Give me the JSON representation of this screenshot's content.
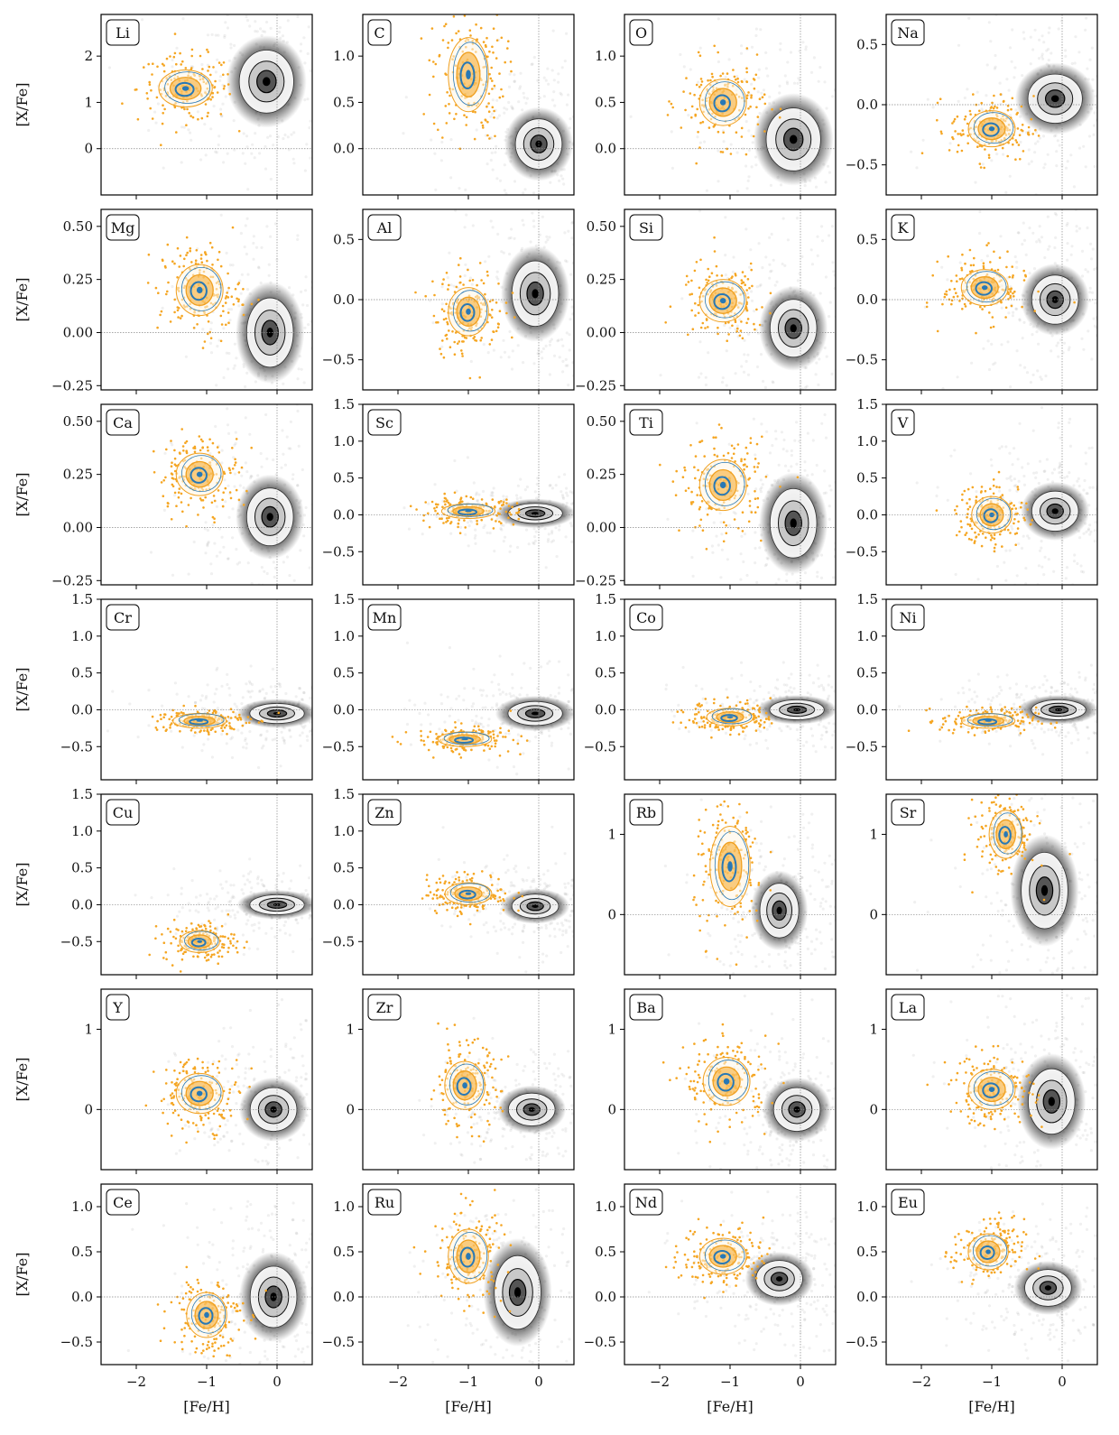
{
  "figure": {
    "xlabel": "[Fe/H]",
    "ylabel": "[X/Fe]",
    "colors": {
      "accreted_points": "#f5a623",
      "accreted_contour_orange": "#f0a020",
      "accreted_contour_blue": "#2878b5",
      "insitu_density": "#000000",
      "reference_lines": "#888888"
    }
  },
  "chart_data": [
    {
      "type": "scatter",
      "title": "Li",
      "xlim": [
        -2.5,
        0.5
      ],
      "ylim": [
        -1.0,
        2.9
      ],
      "yticks": [
        0,
        1,
        2
      ],
      "yticklabels": [
        "0",
        "1",
        "2"
      ],
      "accreted_center": [
        -1.3,
        1.3
      ],
      "disk_center": [
        -0.15,
        1.45
      ],
      "disk_spread": [
        0.35,
        0.5
      ],
      "accreted_spread": [
        0.4,
        0.4
      ]
    },
    {
      "type": "scatter",
      "title": "C",
      "xlim": [
        -2.5,
        0.5
      ],
      "ylim": [
        -0.5,
        1.45
      ],
      "yticks": [
        0,
        0.5,
        1.0
      ],
      "yticklabels": [
        "0.0",
        "0.5",
        "1.0"
      ],
      "accreted_center": [
        -1.0,
        0.8
      ],
      "disk_center": [
        0.0,
        0.05
      ],
      "disk_spread": [
        0.3,
        0.2
      ],
      "accreted_spread": [
        0.3,
        0.4
      ]
    },
    {
      "type": "scatter",
      "title": "O",
      "xlim": [
        -2.5,
        0.5
      ],
      "ylim": [
        -0.5,
        1.45
      ],
      "yticks": [
        0,
        0.5,
        1.0
      ],
      "yticklabels": [
        "0.0",
        "0.5",
        "1.0"
      ],
      "accreted_center": [
        -1.1,
        0.5
      ],
      "disk_center": [
        -0.1,
        0.1
      ],
      "disk_spread": [
        0.35,
        0.25
      ],
      "accreted_spread": [
        0.35,
        0.25
      ]
    },
    {
      "type": "scatter",
      "title": "Na",
      "xlim": [
        -2.5,
        0.5
      ],
      "ylim": [
        -0.75,
        0.75
      ],
      "yticks": [
        -0.5,
        0,
        0.5
      ],
      "yticklabels": [
        "−0.5",
        "0.0",
        "0.5"
      ],
      "accreted_center": [
        -1.0,
        -0.2
      ],
      "disk_center": [
        -0.1,
        0.05
      ],
      "disk_spread": [
        0.35,
        0.15
      ],
      "accreted_spread": [
        0.35,
        0.15
      ]
    },
    {
      "type": "scatter",
      "title": "Mg",
      "xlim": [
        -2.5,
        0.5
      ],
      "ylim": [
        -0.27,
        0.58
      ],
      "yticks": [
        -0.25,
        0,
        0.25,
        0.5
      ],
      "yticklabels": [
        "−0.25",
        "0.00",
        "0.25",
        "0.50"
      ],
      "accreted_center": [
        -1.1,
        0.2
      ],
      "disk_center": [
        -0.1,
        0.0
      ],
      "disk_spread": [
        0.3,
        0.12
      ],
      "accreted_spread": [
        0.35,
        0.12
      ]
    },
    {
      "type": "scatter",
      "title": "Al",
      "xlim": [
        -2.5,
        0.5
      ],
      "ylim": [
        -0.75,
        0.75
      ],
      "yticks": [
        -0.5,
        0,
        0.5
      ],
      "yticklabels": [
        "−0.5",
        "0.0",
        "0.5"
      ],
      "accreted_center": [
        -1.0,
        -0.1
      ],
      "disk_center": [
        -0.05,
        0.05
      ],
      "disk_spread": [
        0.3,
        0.2
      ],
      "accreted_spread": [
        0.3,
        0.2
      ]
    },
    {
      "type": "scatter",
      "title": "Si",
      "xlim": [
        -2.5,
        0.5
      ],
      "ylim": [
        -0.27,
        0.58
      ],
      "yticks": [
        -0.25,
        0,
        0.25,
        0.5
      ],
      "yticklabels": [
        "−0.25",
        "0.00",
        "0.25",
        "0.50"
      ],
      "accreted_center": [
        -1.1,
        0.15
      ],
      "disk_center": [
        -0.1,
        0.02
      ],
      "disk_spread": [
        0.3,
        0.1
      ],
      "accreted_spread": [
        0.35,
        0.1
      ]
    },
    {
      "type": "scatter",
      "title": "K",
      "xlim": [
        -2.5,
        0.5
      ],
      "ylim": [
        -0.75,
        0.75
      ],
      "yticks": [
        -0.5,
        0,
        0.5
      ],
      "yticklabels": [
        "−0.5",
        "0.0",
        "0.5"
      ],
      "accreted_center": [
        -1.1,
        0.1
      ],
      "disk_center": [
        -0.1,
        0.0
      ],
      "disk_spread": [
        0.3,
        0.15
      ],
      "accreted_spread": [
        0.35,
        0.15
      ]
    },
    {
      "type": "scatter",
      "title": "Ca",
      "xlim": [
        -2.5,
        0.5
      ],
      "ylim": [
        -0.27,
        0.58
      ],
      "yticks": [
        -0.25,
        0,
        0.25,
        0.5
      ],
      "yticklabels": [
        "−0.25",
        "0.00",
        "0.25",
        "0.50"
      ],
      "accreted_center": [
        -1.1,
        0.25
      ],
      "disk_center": [
        -0.1,
        0.05
      ],
      "disk_spread": [
        0.3,
        0.1
      ],
      "accreted_spread": [
        0.35,
        0.1
      ]
    },
    {
      "type": "scatter",
      "title": "Sc",
      "xlim": [
        -2.5,
        0.5
      ],
      "ylim": [
        -0.95,
        1.5
      ],
      "yticks": [
        -0.5,
        0,
        0.5,
        1.0,
        1.5
      ],
      "yticklabels": [
        "−0.5",
        "0.0",
        "0.5",
        "1.0",
        "1.5"
      ],
      "accreted_center": [
        -1.0,
        0.05
      ],
      "disk_center": [
        -0.05,
        0.02
      ],
      "disk_spread": [
        0.35,
        0.1
      ],
      "accreted_spread": [
        0.4,
        0.1
      ]
    },
    {
      "type": "scatter",
      "title": "Ti",
      "xlim": [
        -2.5,
        0.5
      ],
      "ylim": [
        -0.27,
        0.58
      ],
      "yticks": [
        -0.25,
        0,
        0.25,
        0.5
      ],
      "yticklabels": [
        "−0.25",
        "0.00",
        "0.25",
        "0.50"
      ],
      "accreted_center": [
        -1.1,
        0.2
      ],
      "disk_center": [
        -0.1,
        0.02
      ],
      "disk_spread": [
        0.3,
        0.12
      ],
      "accreted_spread": [
        0.35,
        0.12
      ]
    },
    {
      "type": "scatter",
      "title": "V",
      "xlim": [
        -2.5,
        0.5
      ],
      "ylim": [
        -0.95,
        1.5
      ],
      "yticks": [
        -0.5,
        0,
        0.5,
        1.0,
        1.5
      ],
      "yticklabels": [
        "−0.5",
        "0.0",
        "0.5",
        "1.0",
        "1.5"
      ],
      "accreted_center": [
        -1.0,
        0.0
      ],
      "disk_center": [
        -0.1,
        0.05
      ],
      "disk_spread": [
        0.3,
        0.2
      ],
      "accreted_spread": [
        0.3,
        0.25
      ]
    },
    {
      "type": "scatter",
      "title": "Cr",
      "xlim": [
        -2.5,
        0.5
      ],
      "ylim": [
        -0.95,
        1.5
      ],
      "yticks": [
        -0.5,
        0,
        0.5,
        1.0,
        1.5
      ],
      "yticklabels": [
        "−0.5",
        "0.0",
        "0.5",
        "1.0",
        "1.5"
      ],
      "accreted_center": [
        -1.1,
        -0.15
      ],
      "disk_center": [
        0.0,
        -0.05
      ],
      "disk_spread": [
        0.35,
        0.1
      ],
      "accreted_spread": [
        0.4,
        0.1
      ]
    },
    {
      "type": "scatter",
      "title": "Mn",
      "xlim": [
        -2.5,
        0.5
      ],
      "ylim": [
        -0.95,
        1.5
      ],
      "yticks": [
        -0.5,
        0,
        0.5,
        1.0,
        1.5
      ],
      "yticklabels": [
        "−0.5",
        "0.0",
        "0.5",
        "1.0",
        "1.5"
      ],
      "accreted_center": [
        -1.05,
        -0.4
      ],
      "disk_center": [
        -0.05,
        -0.05
      ],
      "disk_spread": [
        0.35,
        0.12
      ],
      "accreted_spread": [
        0.4,
        0.1
      ]
    },
    {
      "type": "scatter",
      "title": "Co",
      "xlim": [
        -2.5,
        0.5
      ],
      "ylim": [
        -0.95,
        1.5
      ],
      "yticks": [
        -0.5,
        0,
        0.5,
        1.0,
        1.5
      ],
      "yticklabels": [
        "−0.5",
        "0.0",
        "0.5",
        "1.0",
        "1.5"
      ],
      "accreted_center": [
        -1.0,
        -0.1
      ],
      "disk_center": [
        -0.05,
        0.0
      ],
      "disk_spread": [
        0.35,
        0.1
      ],
      "accreted_spread": [
        0.35,
        0.12
      ]
    },
    {
      "type": "scatter",
      "title": "Ni",
      "xlim": [
        -2.5,
        0.5
      ],
      "ylim": [
        -0.95,
        1.5
      ],
      "yticks": [
        -0.5,
        0,
        0.5,
        1.0,
        1.5
      ],
      "yticklabels": [
        "−0.5",
        "0.0",
        "0.5",
        "1.0",
        "1.5"
      ],
      "accreted_center": [
        -1.05,
        -0.15
      ],
      "disk_center": [
        -0.05,
        0.0
      ],
      "disk_spread": [
        0.35,
        0.1
      ],
      "accreted_spread": [
        0.4,
        0.1
      ]
    },
    {
      "type": "scatter",
      "title": "Cu",
      "xlim": [
        -2.5,
        0.5
      ],
      "ylim": [
        -0.95,
        1.5
      ],
      "yticks": [
        -0.5,
        0,
        0.5,
        1.0,
        1.5
      ],
      "yticklabels": [
        "−0.5",
        "0.0",
        "0.5",
        "1.0",
        "1.5"
      ],
      "accreted_center": [
        -1.1,
        -0.5
      ],
      "disk_center": [
        0.0,
        0.0
      ],
      "disk_spread": [
        0.35,
        0.1
      ],
      "accreted_spread": [
        0.3,
        0.15
      ]
    },
    {
      "type": "scatter",
      "title": "Zn",
      "xlim": [
        -2.5,
        0.5
      ],
      "ylim": [
        -0.95,
        1.5
      ],
      "yticks": [
        -0.5,
        0,
        0.5,
        1.0,
        1.5
      ],
      "yticklabels": [
        "−0.5",
        "0.0",
        "0.5",
        "1.0",
        "1.5"
      ],
      "accreted_center": [
        -1.0,
        0.15
      ],
      "disk_center": [
        -0.05,
        -0.02
      ],
      "disk_spread": [
        0.3,
        0.12
      ],
      "accreted_spread": [
        0.35,
        0.15
      ]
    },
    {
      "type": "scatter",
      "title": "Rb",
      "xlim": [
        -2.5,
        0.5
      ],
      "ylim": [
        -0.75,
        1.5
      ],
      "yticks": [
        0,
        1
      ],
      "yticklabels": [
        "0",
        "1"
      ],
      "accreted_center": [
        -1.0,
        0.6
      ],
      "disk_center": [
        -0.3,
        0.05
      ],
      "disk_spread": [
        0.25,
        0.25
      ],
      "accreted_spread": [
        0.3,
        0.5
      ]
    },
    {
      "type": "scatter",
      "title": "Sr",
      "xlim": [
        -2.5,
        0.5
      ],
      "ylim": [
        -0.75,
        1.5
      ],
      "yticks": [
        0,
        1
      ],
      "yticklabels": [
        "0",
        "1"
      ],
      "accreted_center": [
        -0.8,
        1.0
      ],
      "disk_center": [
        -0.25,
        0.3
      ],
      "disk_spread": [
        0.3,
        0.35
      ],
      "accreted_spread": [
        0.25,
        0.3
      ]
    },
    {
      "type": "scatter",
      "title": "Y",
      "xlim": [
        -2.5,
        0.5
      ],
      "ylim": [
        -0.75,
        1.5
      ],
      "yticks": [
        0,
        1
      ],
      "yticklabels": [
        "0",
        "1"
      ],
      "accreted_center": [
        -1.1,
        0.2
      ],
      "disk_center": [
        -0.05,
        0.0
      ],
      "disk_spread": [
        0.3,
        0.2
      ],
      "accreted_spread": [
        0.35,
        0.25
      ]
    },
    {
      "type": "scatter",
      "title": "Zr",
      "xlim": [
        -2.5,
        0.5
      ],
      "ylim": [
        -0.75,
        1.5
      ],
      "yticks": [
        0,
        1
      ],
      "yticklabels": [
        "0",
        "1"
      ],
      "accreted_center": [
        -1.05,
        0.3
      ],
      "disk_center": [
        -0.1,
        0.0
      ],
      "disk_spread": [
        0.3,
        0.15
      ],
      "accreted_spread": [
        0.3,
        0.3
      ]
    },
    {
      "type": "scatter",
      "title": "Ba",
      "xlim": [
        -2.5,
        0.5
      ],
      "ylim": [
        -0.75,
        1.5
      ],
      "yticks": [
        0,
        1
      ],
      "yticklabels": [
        "0",
        "1"
      ],
      "accreted_center": [
        -1.05,
        0.35
      ],
      "disk_center": [
        -0.05,
        0.0
      ],
      "disk_spread": [
        0.3,
        0.2
      ],
      "accreted_spread": [
        0.35,
        0.3
      ]
    },
    {
      "type": "scatter",
      "title": "La",
      "xlim": [
        -2.5,
        0.5
      ],
      "ylim": [
        -0.75,
        1.5
      ],
      "yticks": [
        0,
        1
      ],
      "yticklabels": [
        "0",
        "1"
      ],
      "accreted_center": [
        -1.0,
        0.25
      ],
      "disk_center": [
        -0.15,
        0.1
      ],
      "disk_spread": [
        0.3,
        0.3
      ],
      "accreted_spread": [
        0.35,
        0.25
      ]
    },
    {
      "type": "scatter",
      "title": "Ce",
      "xlim": [
        -2.5,
        0.5
      ],
      "ylim": [
        -0.75,
        1.25
      ],
      "yticks": [
        -0.5,
        0,
        0.5,
        1.0
      ],
      "yticklabels": [
        "−0.5",
        "0.0",
        "0.5",
        "1.0"
      ],
      "accreted_center": [
        -1.0,
        -0.2
      ],
      "disk_center": [
        -0.05,
        0.0
      ],
      "disk_spread": [
        0.3,
        0.25
      ],
      "accreted_spread": [
        0.3,
        0.25
      ]
    },
    {
      "type": "scatter",
      "title": "Ru",
      "xlim": [
        -2.5,
        0.5
      ],
      "ylim": [
        -0.75,
        1.25
      ],
      "yticks": [
        -0.5,
        0,
        0.5,
        1.0
      ],
      "yticklabels": [
        "−0.5",
        "0.0",
        "0.5",
        "1.0"
      ],
      "accreted_center": [
        -1.0,
        0.45
      ],
      "disk_center": [
        -0.3,
        0.05
      ],
      "disk_spread": [
        0.3,
        0.3
      ],
      "accreted_spread": [
        0.3,
        0.3
      ]
    },
    {
      "type": "scatter",
      "title": "Nd",
      "xlim": [
        -2.5,
        0.5
      ],
      "ylim": [
        -0.75,
        1.25
      ],
      "yticks": [
        -0.5,
        0,
        0.5,
        1.0
      ],
      "yticklabels": [
        "−0.5",
        "0.0",
        "0.5",
        "1.0"
      ],
      "accreted_center": [
        -1.1,
        0.45
      ],
      "disk_center": [
        -0.3,
        0.2
      ],
      "disk_spread": [
        0.3,
        0.15
      ],
      "accreted_spread": [
        0.35,
        0.2
      ]
    },
    {
      "type": "scatter",
      "title": "Eu",
      "xlim": [
        -2.5,
        0.5
      ],
      "ylim": [
        -0.75,
        1.25
      ],
      "yticks": [
        -0.5,
        0,
        0.5,
        1.0
      ],
      "yticklabels": [
        "−0.5",
        "0.0",
        "0.5",
        "1.0"
      ],
      "accreted_center": [
        -1.05,
        0.5
      ],
      "disk_center": [
        -0.2,
        0.1
      ],
      "disk_spread": [
        0.3,
        0.15
      ],
      "accreted_spread": [
        0.3,
        0.2
      ]
    }
  ],
  "xticks": [
    -2,
    -1,
    0
  ],
  "xticklabels": [
    "−2",
    "−1",
    "0"
  ]
}
